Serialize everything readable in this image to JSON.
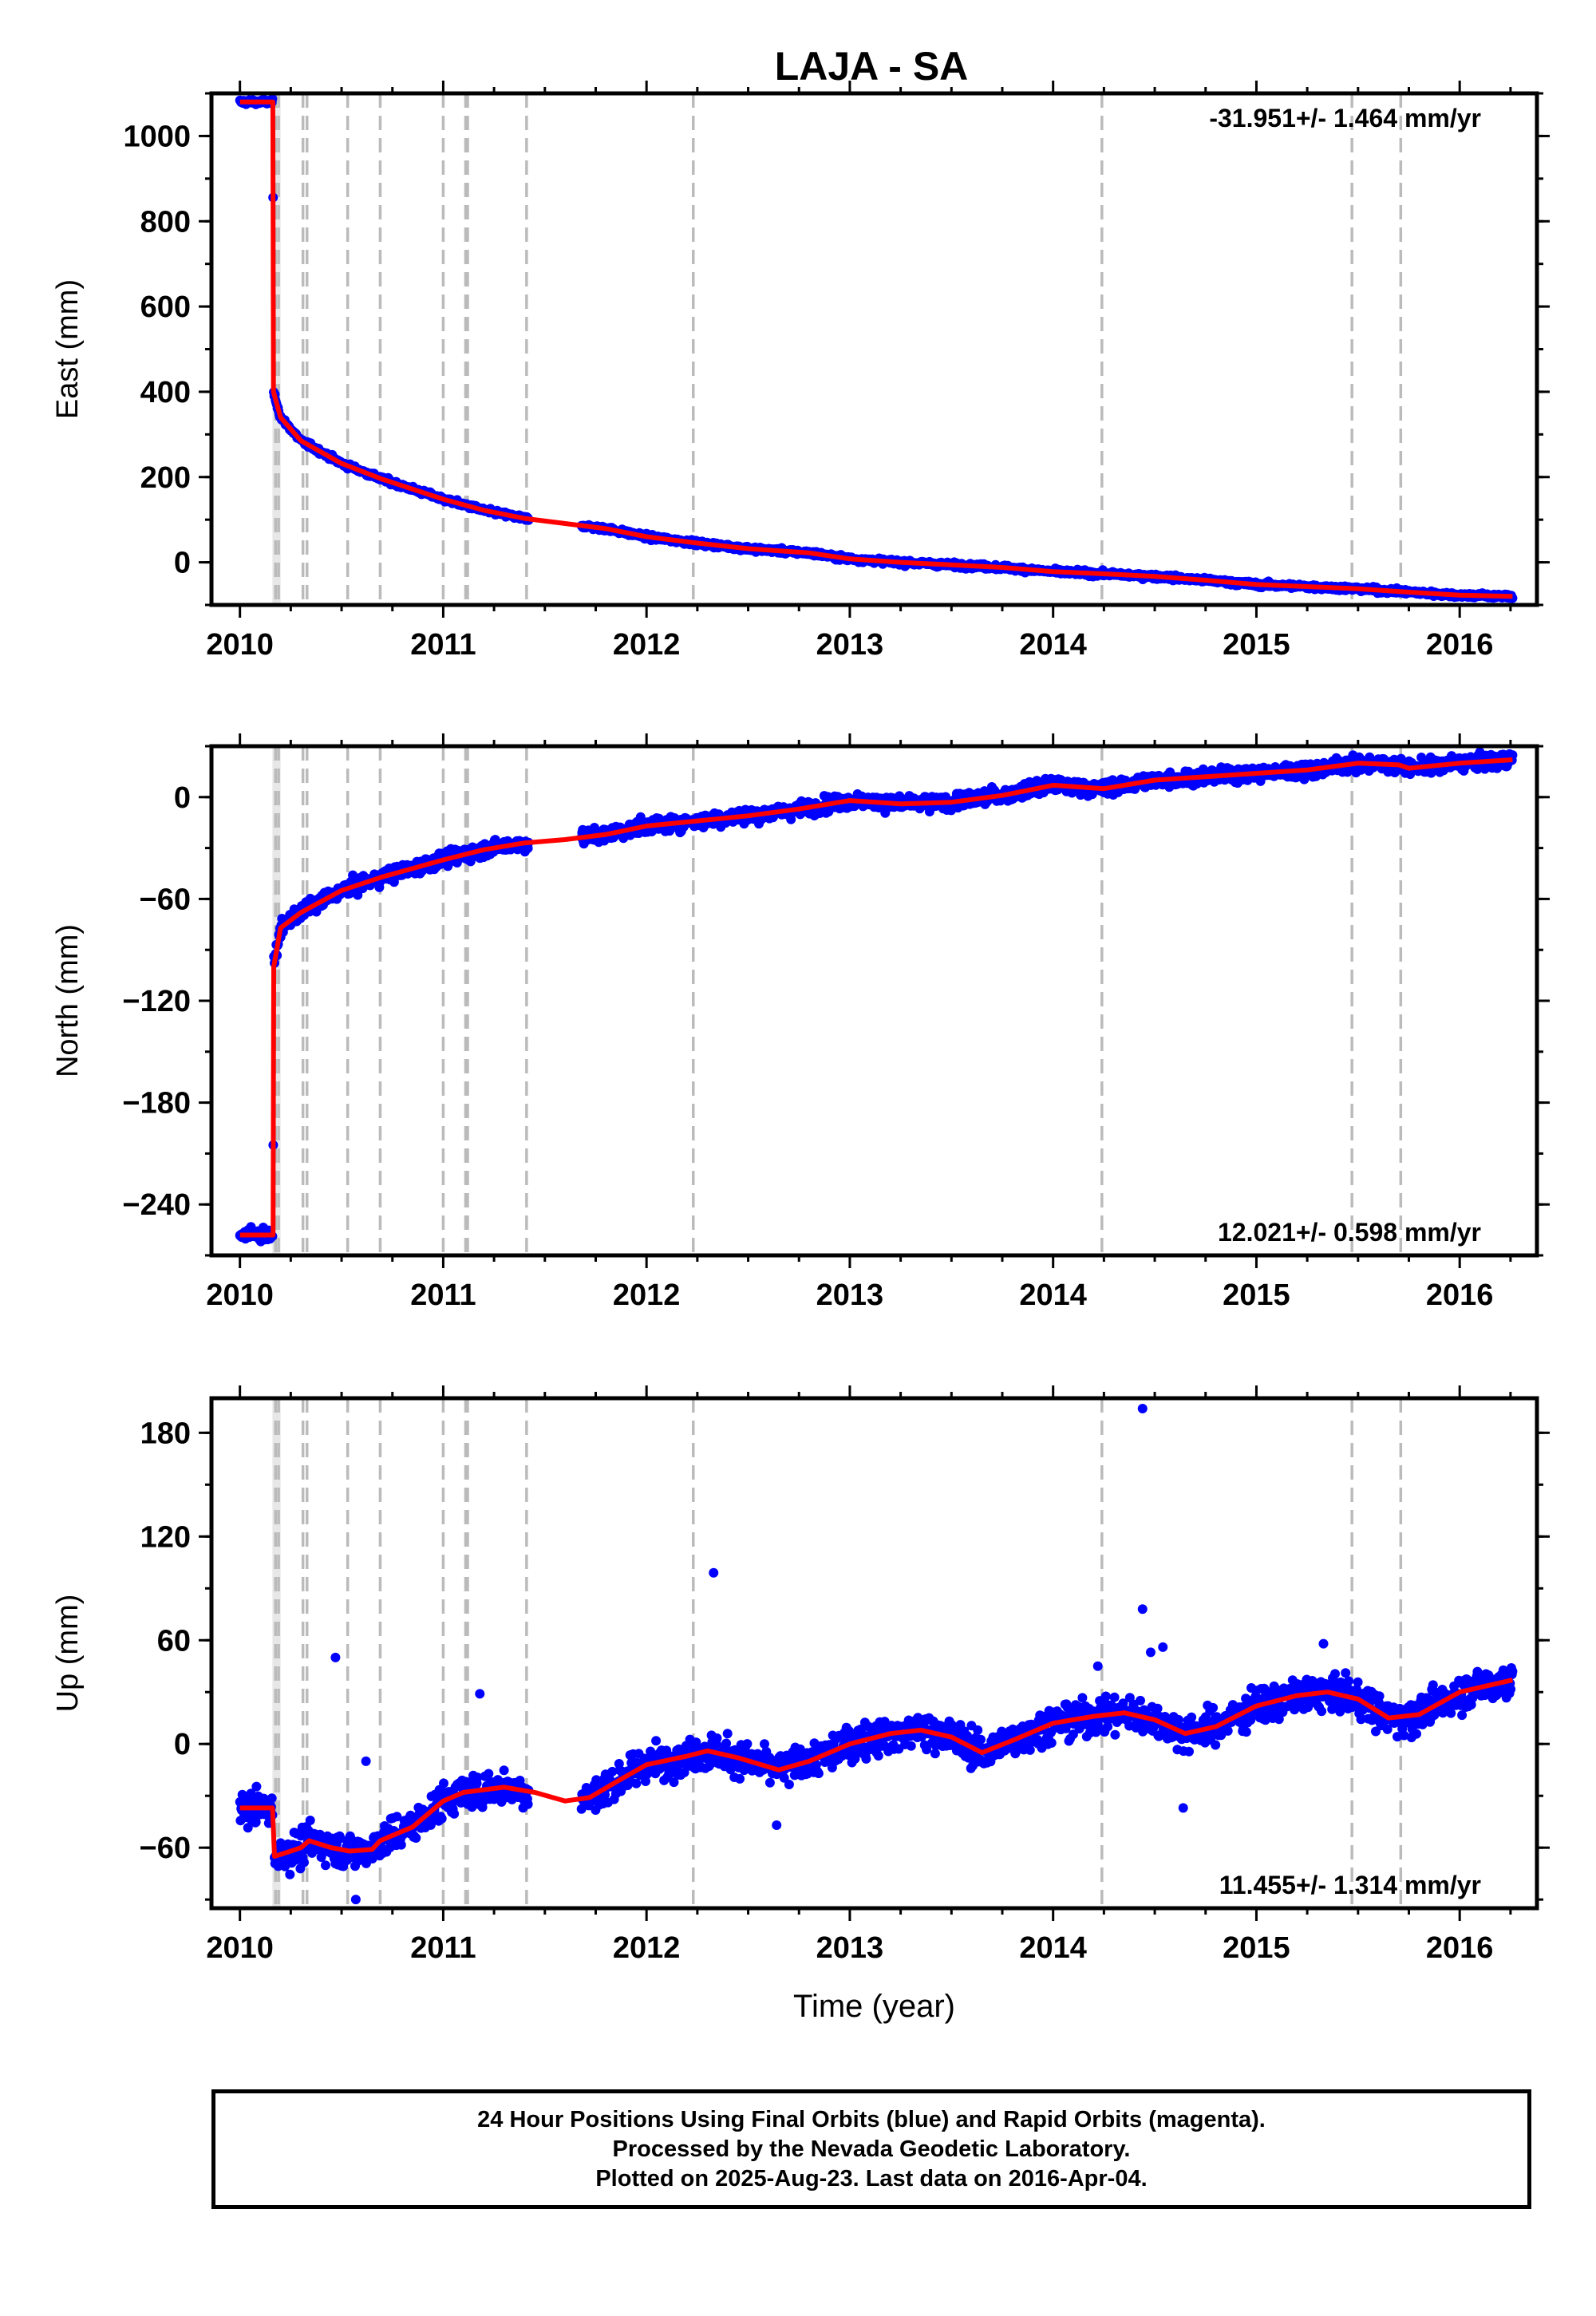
{
  "title": "LAJA - SA",
  "colors": {
    "data": "#0000ff",
    "model": "#ff0000",
    "event": "#bbbbbb",
    "frame": "#000000"
  },
  "footer": {
    "line1": "24 Hour Positions Using Final Orbits (blue) and Rapid Orbits (magenta).",
    "line2": "Processed by the Nevada Geodetic Laboratory.",
    "line3": "Plotted on 2025-Aug-23. Last data on 2016-Apr-04."
  },
  "chart_data": [
    {
      "type": "scatter",
      "name": "east",
      "ylabel": "East (mm)",
      "xlabel": "",
      "rate_label": "-31.951+/- 1.464 mm/yr",
      "rate_position": "top-right",
      "xlim": [
        2009.86,
        2016.38
      ],
      "ylim": [
        -100,
        1100
      ],
      "xticks": [
        2010,
        2011,
        2012,
        2013,
        2014,
        2015,
        2016
      ],
      "yticks": [
        0,
        200,
        400,
        600,
        800,
        1000
      ],
      "model_points": [
        [
          2010.0,
          1080
        ],
        [
          2010.15,
          1080
        ],
        [
          2010.162,
          1080
        ],
        [
          2010.165,
          400
        ],
        [
          2010.2,
          340
        ],
        [
          2010.3,
          285
        ],
        [
          2010.5,
          232
        ],
        [
          2010.7,
          195
        ],
        [
          2011.0,
          148
        ],
        [
          2011.2,
          122
        ],
        [
          2011.4,
          103
        ],
        [
          2011.6,
          91
        ],
        [
          2011.8,
          79
        ],
        [
          2012.0,
          60
        ],
        [
          2012.25,
          45
        ],
        [
          2012.5,
          32
        ],
        [
          2012.8,
          22
        ],
        [
          2013.0,
          8
        ],
        [
          2013.25,
          0
        ],
        [
          2013.5,
          -6
        ],
        [
          2013.75,
          -12
        ],
        [
          2014.0,
          -22
        ],
        [
          2014.25,
          -27
        ],
        [
          2014.5,
          -33
        ],
        [
          2014.75,
          -42
        ],
        [
          2015.0,
          -52
        ],
        [
          2015.25,
          -57
        ],
        [
          2015.5,
          -62
        ],
        [
          2015.75,
          -70
        ],
        [
          2016.0,
          -77
        ],
        [
          2016.26,
          -80
        ]
      ],
      "data_ranges": [
        [
          2010.0,
          2010.16
        ],
        [
          2010.163,
          2011.42
        ],
        [
          2011.68,
          2016.26
        ]
      ],
      "noise_mm": 4,
      "outliers": []
    },
    {
      "type": "scatter",
      "name": "north",
      "ylabel": "North (mm)",
      "xlabel": "",
      "rate_label": "12.021+/- 0.598 mm/yr",
      "rate_position": "bottom-right",
      "xlim": [
        2009.86,
        2016.38
      ],
      "ylim": [
        -270,
        30
      ],
      "xticks": [
        2010,
        2011,
        2012,
        2013,
        2014,
        2015,
        2016
      ],
      "yticks": [
        0,
        -60,
        -120,
        -180,
        -240
      ],
      "model_points": [
        [
          2010.0,
          -258
        ],
        [
          2010.16,
          -258
        ],
        [
          2010.163,
          -258
        ],
        [
          2010.166,
          -100
        ],
        [
          2010.2,
          -77
        ],
        [
          2010.3,
          -68
        ],
        [
          2010.5,
          -55
        ],
        [
          2010.7,
          -47
        ],
        [
          2011.0,
          -37
        ],
        [
          2011.2,
          -31
        ],
        [
          2011.4,
          -27
        ],
        [
          2011.6,
          -25
        ],
        [
          2011.8,
          -22
        ],
        [
          2012.0,
          -17
        ],
        [
          2012.25,
          -14
        ],
        [
          2012.5,
          -11
        ],
        [
          2012.75,
          -7
        ],
        [
          2013.0,
          -2
        ],
        [
          2013.25,
          -4
        ],
        [
          2013.5,
          -3
        ],
        [
          2013.75,
          1
        ],
        [
          2014.0,
          7
        ],
        [
          2014.25,
          5
        ],
        [
          2014.5,
          10
        ],
        [
          2014.75,
          12
        ],
        [
          2015.0,
          14
        ],
        [
          2015.25,
          16
        ],
        [
          2015.5,
          20
        ],
        [
          2015.7,
          19
        ],
        [
          2015.75,
          17
        ],
        [
          2016.0,
          20
        ],
        [
          2016.26,
          22
        ]
      ],
      "data_ranges": [
        [
          2010.0,
          2010.16
        ],
        [
          2010.164,
          2011.42
        ],
        [
          2011.68,
          2016.26
        ]
      ],
      "noise_mm": 3,
      "outliers": []
    },
    {
      "type": "scatter",
      "name": "up",
      "ylabel": "Up (mm)",
      "xlabel": "Time (year)",
      "rate_label": "11.455+/- 1.314 mm/yr",
      "rate_position": "bottom-right",
      "xlim": [
        2009.86,
        2016.38
      ],
      "ylim": [
        -95,
        200
      ],
      "xticks": [
        2010,
        2011,
        2012,
        2013,
        2014,
        2015,
        2016
      ],
      "yticks": [
        -60,
        0,
        60,
        120,
        180
      ],
      "model_points": [
        [
          2010.0,
          -37
        ],
        [
          2010.16,
          -37
        ],
        [
          2010.17,
          -65
        ],
        [
          2010.25,
          -62
        ],
        [
          2010.3,
          -60
        ],
        [
          2010.34,
          -56
        ],
        [
          2010.45,
          -60
        ],
        [
          2010.54,
          -62
        ],
        [
          2010.65,
          -61
        ],
        [
          2010.69,
          -56
        ],
        [
          2010.85,
          -48
        ],
        [
          2011.0,
          -33
        ],
        [
          2011.1,
          -28
        ],
        [
          2011.3,
          -25
        ],
        [
          2011.45,
          -28
        ],
        [
          2011.6,
          -33
        ],
        [
          2011.72,
          -31
        ],
        [
          2011.85,
          -22
        ],
        [
          2012.0,
          -12
        ],
        [
          2012.2,
          -7
        ],
        [
          2012.3,
          -4
        ],
        [
          2012.45,
          -8
        ],
        [
          2012.65,
          -15
        ],
        [
          2012.8,
          -10
        ],
        [
          2013.0,
          0
        ],
        [
          2013.2,
          6
        ],
        [
          2013.35,
          8
        ],
        [
          2013.5,
          4
        ],
        [
          2013.65,
          -5
        ],
        [
          2013.8,
          2
        ],
        [
          2014.0,
          12
        ],
        [
          2014.2,
          16
        ],
        [
          2014.35,
          18
        ],
        [
          2014.5,
          14
        ],
        [
          2014.65,
          6
        ],
        [
          2014.8,
          10
        ],
        [
          2015.0,
          22
        ],
        [
          2015.2,
          28
        ],
        [
          2015.35,
          30
        ],
        [
          2015.5,
          26
        ],
        [
          2015.65,
          15
        ],
        [
          2015.8,
          17
        ],
        [
          2016.0,
          30
        ],
        [
          2016.26,
          37
        ]
      ],
      "data_ranges": [
        [
          2010.0,
          2010.16
        ],
        [
          2010.17,
          2011.42
        ],
        [
          2011.68,
          2016.26
        ]
      ],
      "noise_mm": 7,
      "outliers": [
        [
          2010.47,
          50
        ],
        [
          2010.62,
          -10
        ],
        [
          2010.57,
          -90
        ],
        [
          2011.18,
          29
        ],
        [
          2012.33,
          99
        ],
        [
          2014.44,
          194
        ],
        [
          2014.44,
          78
        ],
        [
          2014.48,
          53
        ],
        [
          2014.54,
          56
        ],
        [
          2014.64,
          -37
        ],
        [
          2012.64,
          -47
        ],
        [
          2015.33,
          58
        ],
        [
          2014.22,
          45
        ]
      ]
    }
  ],
  "event_lines": [
    2010.175,
    2010.19,
    2010.31,
    2010.33,
    2010.53,
    2010.69,
    2011.0,
    2011.11,
    2011.12,
    2011.41,
    2012.23,
    2014.24,
    2015.47,
    2015.71
  ],
  "event_band": [
    2010.16,
    2010.2
  ]
}
